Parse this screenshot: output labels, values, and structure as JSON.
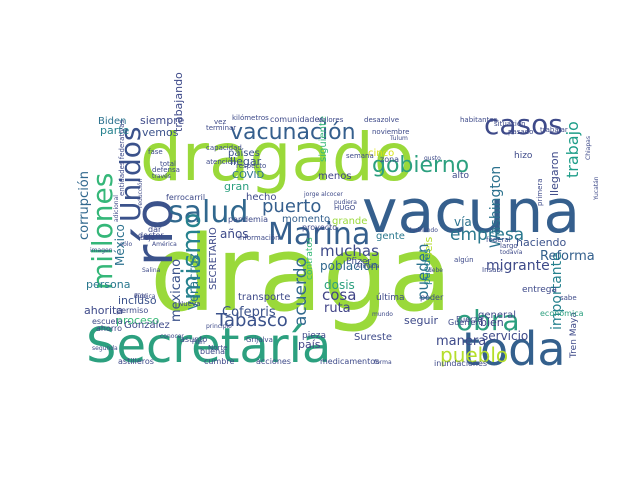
{
  "words": [
    {
      "text": "draga",
      "color": "#9ad93a"
    },
    {
      "text": "dragado",
      "color": "#9ad93a"
    },
    {
      "text": "vacuna",
      "color": "#355f8d"
    },
    {
      "text": "Secretaría",
      "color": "#2ca07f"
    },
    {
      "text": "río",
      "color": "#3b528b"
    },
    {
      "text": "toda",
      "color": "#34608d"
    },
    {
      "text": "Marina",
      "color": "#355f8d"
    },
    {
      "text": "salud",
      "color": "#31688e"
    },
    {
      "text": "millones",
      "color": "#35b779"
    },
    {
      "text": "Unidos",
      "color": "#3b528b"
    },
    {
      "text": "mismo",
      "color": "#26828e"
    },
    {
      "text": "vacunación",
      "color": "#355f8d"
    },
    {
      "text": "casos",
      "color": "#3e4a89"
    },
    {
      "text": "gobierno",
      "color": "#2ca07f"
    },
    {
      "text": "obra",
      "color": "#2ca07f"
    },
    {
      "text": "pueblo",
      "color": "#b5de2b"
    },
    {
      "text": "Tabasco",
      "color": "#3b528b"
    },
    {
      "text": "puerto",
      "color": "#355f8d"
    },
    {
      "text": "empresa",
      "color": "#2a788e"
    },
    {
      "text": "muchas",
      "color": "#3e4a89"
    },
    {
      "text": "cosa",
      "color": "#414487"
    },
    {
      "text": "acuerdo",
      "color": "#31688e"
    },
    {
      "text": "pueden",
      "color": "#2c728e"
    },
    {
      "text": "trabajo",
      "color": "#1f9e89"
    },
    {
      "text": "Washington",
      "color": "#2c728e"
    },
    {
      "text": "migrante",
      "color": "#3e4a89"
    },
    {
      "text": "importante",
      "color": "#26828e"
    },
    {
      "text": "México",
      "color": "#2c728e"
    },
    {
      "text": "corrupción",
      "color": "#31688e"
    },
    {
      "text": "mexicano",
      "color": "#3b528b"
    },
    {
      "text": "Veracruz",
      "color": "#2a788e"
    },
    {
      "text": "Reforma",
      "color": "#34608d"
    },
    {
      "text": "haciendo",
      "color": "#3b528b"
    },
    {
      "text": "Cofepris",
      "color": "#3b528b"
    },
    {
      "text": "manera",
      "color": "#3e4a89"
    },
    {
      "text": "servicio",
      "color": "#3e4a89"
    },
    {
      "text": "ruta",
      "color": "#414487"
    },
    {
      "text": "población",
      "color": "#31688e"
    },
    {
      "text": "dosis",
      "color": "#2ca07f"
    },
    {
      "text": "gente",
      "color": "#2a788e"
    },
    {
      "text": "seguir",
      "color": "#3e4a89"
    },
    {
      "text": "años",
      "color": "#3e4a89"
    },
    {
      "text": "momento",
      "color": "#34608d"
    },
    {
      "text": "proceso",
      "color": "#38b977"
    },
    {
      "text": "persona",
      "color": "#2a788e"
    },
    {
      "text": "ahorita",
      "color": "#3e4a89"
    },
    {
      "text": "incluso",
      "color": "#3b528b"
    },
    {
      "text": "vemos",
      "color": "#3b528b"
    },
    {
      "text": "parte",
      "color": "#26828e"
    },
    {
      "text": "siempre",
      "color": "#3e4a89"
    },
    {
      "text": "trabajando",
      "color": "#3e4a89"
    },
    {
      "text": "Biden",
      "color": "#2c728e"
    },
    {
      "text": "país",
      "color": "#414487"
    },
    {
      "text": "bien",
      "color": "#414487"
    },
    {
      "text": "vía",
      "color": "#2c728e"
    },
    {
      "text": "grande",
      "color": "#9ad93a"
    },
    {
      "text": "menos",
      "color": "#414487"
    },
    {
      "text": "gran",
      "color": "#2ca07f"
    },
    {
      "text": "llegar",
      "color": "#3b528b"
    },
    {
      "text": "países",
      "color": "#3b528b"
    },
    {
      "text": "COVID",
      "color": "#2c728e"
    },
    {
      "text": "González",
      "color": "#3e4a89"
    },
    {
      "text": "hecho",
      "color": "#3e4a89"
    },
    {
      "text": "transporte",
      "color": "#3e4a89"
    },
    {
      "text": "SECRETARIO",
      "color": "#3e4a89"
    },
    {
      "text": "contratos",
      "color": "#38b977"
    },
    {
      "text": "siguiente",
      "color": "#35b779"
    },
    {
      "text": "seis",
      "color": "#b5de2b"
    },
    {
      "text": "llegaron",
      "color": "#3e4a89"
    },
    {
      "text": "puedes",
      "color": "#26828e"
    },
    {
      "text": "general",
      "color": "#3e4a89"
    },
    {
      "text": "Sureste",
      "color": "#3e4a89"
    },
    {
      "text": "pieza",
      "color": "#3e4a89"
    },
    {
      "text": "entrega",
      "color": "#3e4a89"
    },
    {
      "text": "Pfizer",
      "color": "#3e4a89"
    },
    {
      "text": "última",
      "color": "#3e4a89"
    },
    {
      "text": "poder",
      "color": "#3e4a89"
    },
    {
      "text": "Tren Maya",
      "color": "#3e4a89"
    },
    {
      "text": "cinco",
      "color": "#d8e219"
    },
    {
      "text": "hizo",
      "color": "#3e4a89"
    },
    {
      "text": "alto",
      "color": "#3e4a89"
    },
    {
      "text": "medicamentos",
      "color": "#3e4a89"
    },
    {
      "text": "inundaciones",
      "color": "#3e4a89"
    },
    {
      "text": "acciones",
      "color": "#3e4a89"
    },
    {
      "text": "cumbre",
      "color": "#3e4a89"
    },
    {
      "text": "astilleros",
      "color": "#3e4a89"
    },
    {
      "text": "doctor",
      "color": "#3e4a89"
    },
    {
      "text": "escuela",
      "color": "#3e4a89"
    },
    {
      "text": "ahorro",
      "color": "#3e4a89"
    },
    {
      "text": "permiso",
      "color": "#3e4a89"
    },
    {
      "text": "asunto",
      "color": "#3e4a89"
    },
    {
      "text": "buena",
      "color": "#3e4a89"
    },
    {
      "text": "Fuerza",
      "color": "#3e4a89"
    },
    {
      "text": "Guerrero",
      "color": "#3e4a89"
    },
    {
      "text": "económica",
      "color": "#2ca07f"
    },
    {
      "text": "sabe",
      "color": "#3e4a89"
    },
    {
      "text": "zona",
      "color": "#3e4a89"
    },
    {
      "text": "semana",
      "color": "#3e4a89"
    },
    {
      "text": "pandemia",
      "color": "#3e4a89"
    },
    {
      "text": "proyecto",
      "color": "#3e4a89"
    },
    {
      "text": "información",
      "color": "#3e4a89"
    },
    {
      "text": "capacidad",
      "color": "#3e4a89"
    },
    {
      "text": "atención",
      "color": "#3e4a89"
    },
    {
      "text": "respecto",
      "color": "#3e4a89"
    },
    {
      "text": "comunidades",
      "color": "#3e4a89"
    },
    {
      "text": "kilómetros",
      "color": "#3e4a89"
    },
    {
      "text": "valores",
      "color": "#3e4a89"
    },
    {
      "text": "desazolve",
      "color": "#3e4a89"
    },
    {
      "text": "habitantes",
      "color": "#3e4a89"
    },
    {
      "text": "noviembre",
      "color": "#3e4a89"
    },
    {
      "text": "pasado",
      "color": "#3e4a89"
    },
    {
      "text": "situación",
      "color": "#3e4a89"
    },
    {
      "text": "trabajar",
      "color": "#3e4a89"
    },
    {
      "text": "terminar",
      "color": "#3e4a89"
    },
    {
      "text": "entidades federativas",
      "color": "#3e4a89"
    },
    {
      "text": "ferrocarril",
      "color": "#3e4a89"
    },
    {
      "text": "HUGO",
      "color": "#3e4a89"
    },
    {
      "text": "pudiera",
      "color": "#3e4a89"
    },
    {
      "text": "Armada",
      "color": "#3e4a89"
    },
    {
      "text": "Insabi",
      "color": "#3e4a89"
    },
    {
      "text": "federal",
      "color": "#3e4a89"
    },
    {
      "text": "algún",
      "color": "#3e4a89"
    },
    {
      "text": "bajo",
      "color": "#3e4a89"
    },
    {
      "text": "dar",
      "color": "#3e4a89"
    },
    {
      "text": "imagen",
      "color": "#3e4a89"
    },
    {
      "text": "todavía",
      "color": "#3e4a89"
    },
    {
      "text": "largo",
      "color": "#3e4a89"
    },
    {
      "text": "primera",
      "color": "#3e4a89"
    },
    {
      "text": "Nueva",
      "color": "#3e4a89"
    },
    {
      "text": "Norte",
      "color": "#3e4a89"
    },
    {
      "text": "Plan",
      "color": "#3e4a89"
    },
    {
      "text": "Grijalva",
      "color": "#3e4a89"
    },
    {
      "text": "segunda",
      "color": "#3e4a89"
    },
    {
      "text": "conocer",
      "color": "#3e4a89"
    },
    {
      "text": "principio",
      "color": "#3e4a89"
    },
    {
      "text": "mundo",
      "color": "#3e4a89"
    },
    {
      "text": "forma",
      "color": "#3e4a89"
    },
    {
      "text": "jorge alcocer",
      "color": "#3e4a89"
    },
    {
      "text": "total",
      "color": "#3e4a89"
    },
    {
      "text": "defensa",
      "color": "#3e4a89"
    },
    {
      "text": "fase",
      "color": "#3e4a89"
    },
    {
      "text": "vez",
      "color": "#3e4a89"
    },
    {
      "text": "través",
      "color": "#3e4a89"
    },
    {
      "text": "reducción",
      "color": "#3e4a89"
    },
    {
      "text": "digo",
      "color": "#3e4a89"
    },
    {
      "text": "Pública",
      "color": "#3e4a89"
    },
    {
      "text": "Salina",
      "color": "#3e4a89"
    },
    {
      "text": "América",
      "color": "#3e4a89"
    },
    {
      "text": "adicional",
      "color": "#3e4a89"
    },
    {
      "text": "sólo",
      "color": "#3e4a89"
    },
    {
      "text": "hablando",
      "color": "#3e4a89"
    },
    {
      "text": "debe",
      "color": "#3e4a89"
    },
    {
      "text": "gusto",
      "color": "#3e4a89"
    },
    {
      "text": "Tulum",
      "color": "#3e4a89"
    },
    {
      "text": "Chiapas",
      "color": "#3e4a89"
    },
    {
      "text": "Yucatán",
      "color": "#3e4a89"
    }
  ]
}
